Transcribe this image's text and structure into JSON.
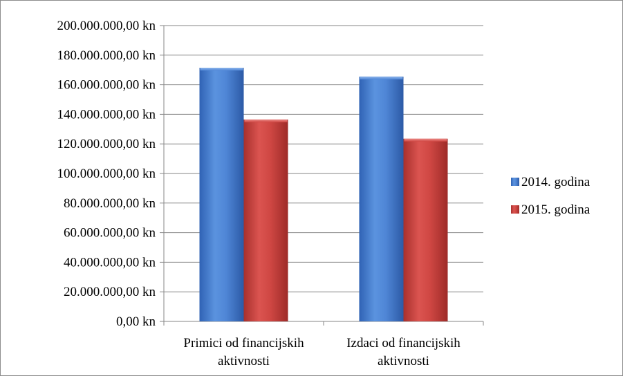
{
  "chart_data": {
    "type": "bar",
    "categories": [
      [
        "Primici od financijskih",
        "aktivnosti"
      ],
      [
        "Izdaci od financijskih",
        "aktivnosti"
      ]
    ],
    "series": [
      {
        "name": "2014. godina",
        "values": [
          171500000,
          165500000
        ],
        "color": "#4a7ecb"
      },
      {
        "name": "2015. godina",
        "values": [
          136500000,
          123500000
        ],
        "color": "#c8413d"
      }
    ],
    "y_ticks": [
      "0,00 kn",
      "20.000.000,00 kn",
      "40.000.000,00 kn",
      "60.000.000,00 kn",
      "80.000.000,00 kn",
      "100.000.000,00 kn",
      "120.000.000,00 kn",
      "140.000.000,00 kn",
      "160.000.000,00 kn",
      "180.000.000,00 kn",
      "200.000.000,00 kn"
    ],
    "ylim": [
      0,
      200000000
    ],
    "grid": true,
    "legend_position": "right",
    "title": "",
    "xlabel": "",
    "ylabel": ""
  }
}
